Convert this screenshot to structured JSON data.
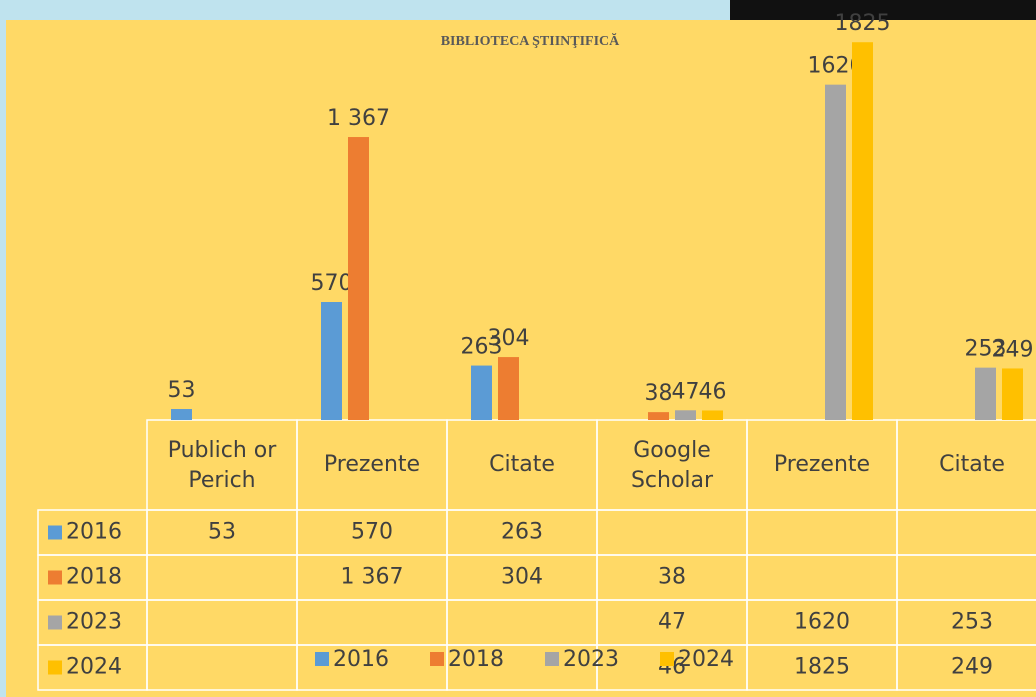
{
  "chart_data": {
    "type": "bar",
    "title": "BIBLIOTECA ŞTIINŢIFICĂ",
    "categories": [
      "Publich or Perich",
      "Prezente",
      "Citate",
      "Google Scholar",
      "Prezente",
      "Citate"
    ],
    "series": [
      {
        "name": "2016",
        "color": "#5b9bd5",
        "values": [
          53,
          570,
          263,
          null,
          null,
          null
        ]
      },
      {
        "name": "2018",
        "color": "#ed7d31",
        "values": [
          null,
          1367,
          304,
          38,
          null,
          null
        ],
        "value_labels": [
          null,
          "1 367",
          null,
          null,
          null,
          null
        ]
      },
      {
        "name": "2023",
        "color": "#a5a5a5",
        "values": [
          null,
          null,
          null,
          47,
          1620,
          253
        ]
      },
      {
        "name": "2024",
        "color": "#ffc000",
        "values": [
          null,
          null,
          null,
          46,
          1825,
          249
        ]
      }
    ],
    "ylim": [
      0,
      2000
    ]
  }
}
